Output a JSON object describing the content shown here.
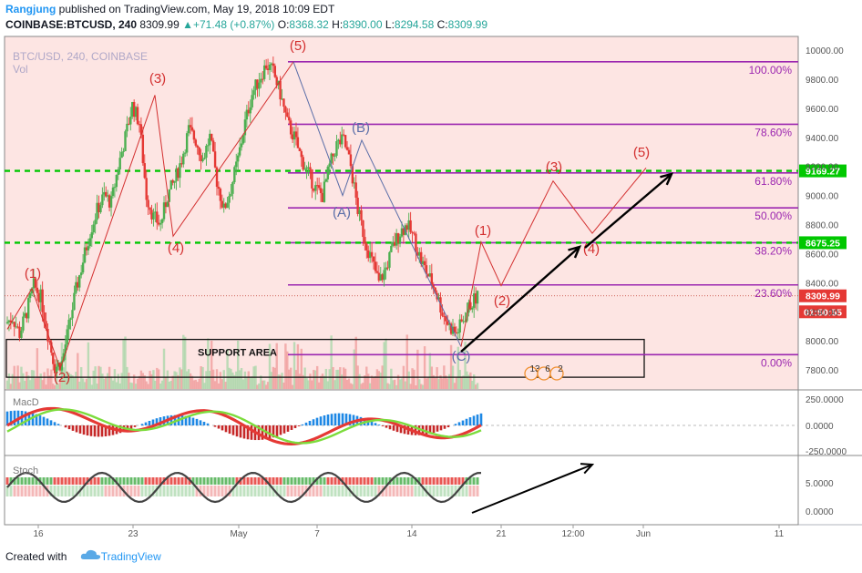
{
  "header": {
    "user": "Rangjung",
    "published": "published on TradingView.com, May 19, 2018 10:09 EDT",
    "symbol": "COINBASE:BTCUSD, 240",
    "last": "8309.99",
    "change": "+71.48 (+0.87%)",
    "o_label": "O:",
    "o": "8368.32",
    "h_label": "H:",
    "h": "8390.00",
    "l_label": "L:",
    "l": "8294.58",
    "c_label": "C:",
    "c": "8309.99"
  },
  "watermark": {
    "line1": "BTC/USD, 240, COINBASE",
    "line2": "Vol"
  },
  "footer": {
    "created": "Created with",
    "brand": "TradingView"
  },
  "colors": {
    "bg_main": "#fde5e3",
    "bull": "#4caf50",
    "bear": "#e53935",
    "fib": "#9c27b0",
    "level": "#00c800",
    "wave": "#d32f2f",
    "wave_bc": "#5b6ea8"
  },
  "chart_data": {
    "type": "candlestick",
    "title": "BTC/USD, 240, COINBASE",
    "ylim": [
      7700,
      10050
    ],
    "y_ticks": [
      "10000.00",
      "9800.00",
      "9600.00",
      "9400.00",
      "9200.00",
      "9000.00",
      "8800.00",
      "8600.00",
      "8400.00",
      "8200.00",
      "8000.00",
      "7800.00"
    ],
    "x_ticks": [
      "16",
      "23",
      "May",
      "7",
      "14",
      "21",
      "12:00",
      "Jun",
      "11"
    ],
    "price_badges": [
      {
        "label": "9169.27",
        "value": 9169.27,
        "color": "#00c800"
      },
      {
        "label": "8675.25",
        "value": 8675.25,
        "color": "#00c800"
      },
      {
        "label": "8309.99",
        "value": 8309.99,
        "color": "#e53935"
      },
      {
        "label": "01:50:55",
        "value": 8200,
        "color": "#e53935"
      }
    ],
    "fib_levels": [
      {
        "label": "100.00%",
        "value": 9920
      },
      {
        "label": "78.60%",
        "value": 9490
      },
      {
        "label": "61.80%",
        "value": 9155
      },
      {
        "label": "50.00%",
        "value": 8915
      },
      {
        "label": "38.20%",
        "value": 8675
      },
      {
        "label": "23.60%",
        "value": 8385
      },
      {
        "label": "0.00%",
        "value": 7905
      }
    ],
    "horizontal_levels": [
      9169.27,
      8675.25
    ],
    "support_area": {
      "label": "SUPPORT AREA",
      "top": 8010,
      "bottom": 7750
    },
    "wave_labels": [
      {
        "label": "(1)",
        "kind": "past"
      },
      {
        "label": "(2)",
        "kind": "past"
      },
      {
        "label": "(3)",
        "kind": "past"
      },
      {
        "label": "(4)",
        "kind": "past"
      },
      {
        "label": "(5)",
        "kind": "past"
      },
      {
        "label": "(A)",
        "kind": "corr"
      },
      {
        "label": "(B)",
        "kind": "corr"
      },
      {
        "label": "(C)",
        "kind": "corr"
      },
      {
        "label": "(1)",
        "kind": "proj"
      },
      {
        "label": "(2)",
        "kind": "proj"
      },
      {
        "label": "(3)",
        "kind": "proj"
      },
      {
        "label": "(4)",
        "kind": "proj"
      },
      {
        "label": "(5)",
        "kind": "proj"
      }
    ],
    "macd": {
      "name": "MacD",
      "y_ticks": [
        "250.0000",
        "0.0000",
        "-250.0000"
      ]
    },
    "stoch": {
      "name": "Stoch",
      "y_ticks": [
        "5.0000",
        "0.0000"
      ]
    },
    "events": [
      "13",
      "6",
      "2"
    ],
    "price_path": [
      8120,
      8160,
      8050,
      8200,
      8380,
      8300,
      8050,
      7820,
      7850,
      8100,
      8350,
      8550,
      8750,
      8900,
      9000,
      8950,
      9200,
      9400,
      9620,
      9500,
      9000,
      8850,
      8800,
      9000,
      9100,
      9250,
      9450,
      9380,
      9250,
      9400,
      9100,
      8900,
      9050,
      9250,
      9500,
      9700,
      9800,
      9900,
      9850,
      9700,
      9500,
      9400,
      9250,
      9150,
      9050,
      9000,
      9200,
      9350,
      9380,
      9200,
      8900,
      8700,
      8550,
      8400,
      8500,
      8650,
      8750,
      8800,
      8700,
      8550,
      8450,
      8350,
      8200,
      8100,
      8050,
      8150,
      8250,
      8310
    ]
  }
}
